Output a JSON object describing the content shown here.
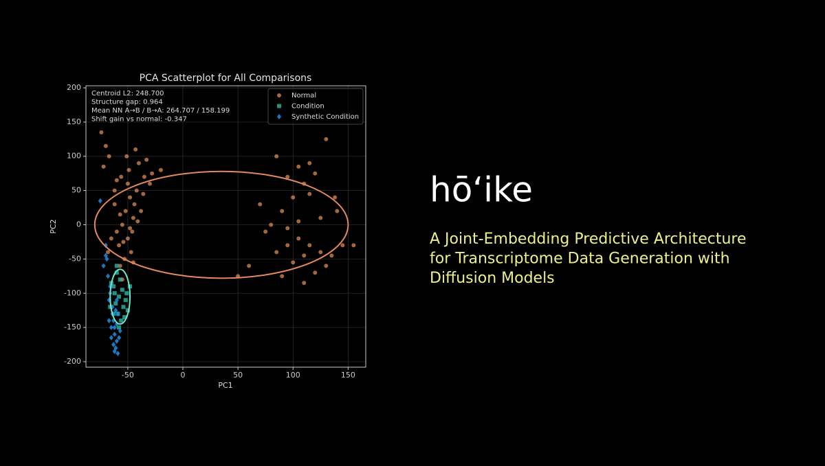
{
  "brand": "hōʻike",
  "tagline": [
    "A Joint-Embedding Predictive Architecture",
    "for Transcriptome Data Generation with",
    "Diffusion Models"
  ],
  "chart_data": {
    "type": "scatter",
    "title": "PCA Scatterplot for All Comparisons",
    "xlabel": "PC1",
    "ylabel": "PC2",
    "xlim": [
      -88,
      166
    ],
    "ylim": [
      -208,
      203
    ],
    "xticks": [
      -50,
      0,
      50,
      100,
      150
    ],
    "yticks": [
      -200,
      -150,
      -100,
      -50,
      0,
      50,
      100,
      150,
      200
    ],
    "grid": true,
    "legend": "upper right",
    "annotations": [
      "Centroid L2: 248.700",
      "Structure gap: 0.964",
      "Mean NN A→B / B→A: 264.707 / 158.199",
      "Shift gain vs normal: -0.347"
    ],
    "series": [
      {
        "name": "Normal",
        "color": "#e8945c",
        "marker": "circle",
        "x": [
          -50,
          -48,
          -52,
          -55,
          -45,
          -50,
          -58,
          -47,
          -53,
          -60,
          -44,
          -42,
          -56,
          -49,
          -40,
          -35,
          -30,
          -62,
          -65,
          -57,
          -38,
          -46,
          -51,
          -43,
          -36,
          -74,
          -70,
          -67,
          -72,
          -68,
          -62,
          -54,
          -48,
          -41,
          -28,
          -20,
          -33,
          -57,
          -60,
          -45,
          85,
          95,
          105,
          115,
          120,
          110,
          100,
          90,
          80,
          75,
          95,
          105,
          115,
          125,
          135,
          145,
          155,
          130,
          120,
          100,
          90,
          110,
          140,
          125,
          115,
          70,
          85,
          130,
          138,
          105,
          95,
          110,
          -55,
          50,
          60
        ],
        "values": [
          60,
          40,
          20,
          0,
          10,
          -20,
          -30,
          -40,
          -50,
          -10,
          30,
          50,
          70,
          80,
          90,
          70,
          60,
          30,
          -20,
          -60,
          20,
          -10,
          100,
          110,
          45,
          135,
          115,
          100,
          85,
          -40,
          50,
          -25,
          -5,
          5,
          75,
          80,
          95,
          15,
          65,
          -55,
          100,
          70,
          85,
          90,
          75,
          60,
          40,
          20,
          0,
          -10,
          -5,
          -20,
          -30,
          -40,
          -45,
          -30,
          -30,
          -60,
          -70,
          -55,
          -75,
          -85,
          20,
          10,
          45,
          30,
          -40,
          125,
          40,
          5,
          -30,
          -45,
          -80,
          -75,
          -60
        ],
        "ellipse": {
          "cx": 35,
          "cy": 0,
          "rx": 115,
          "ry": 78
        }
      },
      {
        "name": "Condition",
        "color": "#2fb3a3",
        "marker": "square",
        "x": [
          -60,
          -57,
          -63,
          -55,
          -58,
          -61,
          -54,
          -59,
          -62,
          -56,
          -50,
          -52,
          -48,
          -65,
          -66,
          -58,
          -53,
          -60,
          -51,
          -63
        ],
        "values": [
          -70,
          -80,
          -90,
          -95,
          -105,
          -115,
          -120,
          -130,
          -100,
          -140,
          -125,
          -110,
          -90,
          -85,
          -120,
          -150,
          -135,
          -60,
          -100,
          -130
        ],
        "ellipse": {
          "cx": -57,
          "cy": -105,
          "rx": 9,
          "ry": 40
        }
      },
      {
        "name": "Synthetic Condition",
        "color": "#1f8ee0",
        "marker": "diamond",
        "x": [
          -75,
          -70,
          -72,
          -68,
          -66,
          -64,
          -63,
          -62,
          -60,
          -61,
          -59,
          -65,
          -64,
          -67,
          -66,
          -62,
          -58,
          -60,
          -61,
          -63,
          -57,
          -60,
          -69,
          -70,
          -62,
          -59,
          -65,
          -67
        ],
        "values": [
          35,
          -30,
          -60,
          -75,
          -100,
          -120,
          -140,
          -160,
          -170,
          -180,
          -188,
          -150,
          -130,
          -110,
          -90,
          -150,
          -165,
          -145,
          -125,
          -175,
          -155,
          -110,
          -50,
          -45,
          -185,
          -130,
          -165,
          -140
        ]
      }
    ]
  }
}
